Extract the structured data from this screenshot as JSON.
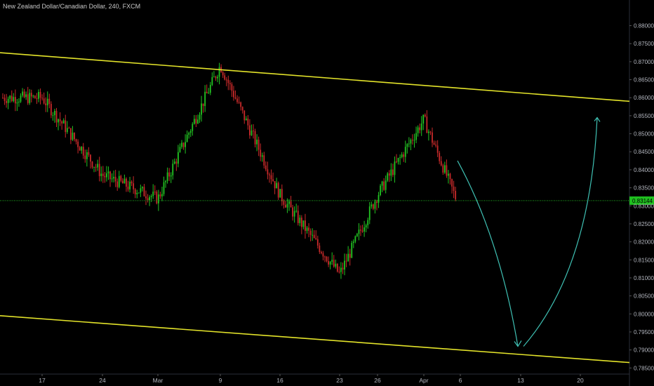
{
  "header": {
    "title": "New Zealand Dollar/Canadian Dollar, 240, FXCM"
  },
  "colors": {
    "background": "#000000",
    "bull": "#22c422",
    "bear": "#c82a2a",
    "trendline": "#e3e32a",
    "projection": "#3fc1b4",
    "price_line": "#22b422",
    "price_label_bg": "#1fbf1f"
  },
  "chart_data": {
    "type": "candlestick",
    "title": "New Zealand Dollar/Canadian Dollar, 240, FXCM",
    "ylim": [
      0.7835,
      0.884
    ],
    "y_ticks": [
      "0.88000",
      "0.87500",
      "0.87000",
      "0.86500",
      "0.86000",
      "0.85500",
      "0.85000",
      "0.84500",
      "0.84000",
      "0.83500",
      "0.83000",
      "0.82500",
      "0.82000",
      "0.81500",
      "0.81000",
      "0.80500",
      "0.80000",
      "0.79500",
      "0.79000",
      "0.78500"
    ],
    "x_ticks": [
      "17",
      "24",
      "Mar",
      "9",
      "16",
      "23",
      "26",
      "Apr",
      "6",
      "13",
      "20"
    ],
    "last_price": 0.83144,
    "last_price_label": "0.83144",
    "price_path": [
      [
        "17",
        0.86
      ],
      [
        "24",
        0.8385
      ],
      [
        "Mar",
        0.832
      ],
      [
        "9",
        0.869
      ],
      [
        "16",
        0.833
      ],
      [
        "23",
        0.811
      ],
      [
        "26",
        0.833
      ],
      [
        "Apr",
        0.854
      ],
      [
        "6",
        0.829
      ]
    ],
    "annotations": {
      "upper_trendline": [
        [
          "start",
          0.8725
        ],
        [
          "end",
          0.859
        ]
      ],
      "lower_trendline": [
        [
          "start",
          0.7995
        ],
        [
          "end",
          0.7865
        ]
      ],
      "projected_path": [
        [
          "6",
          0.8425
        ],
        [
          "13",
          0.791
        ],
        [
          "20",
          0.8545
        ]
      ]
    }
  }
}
